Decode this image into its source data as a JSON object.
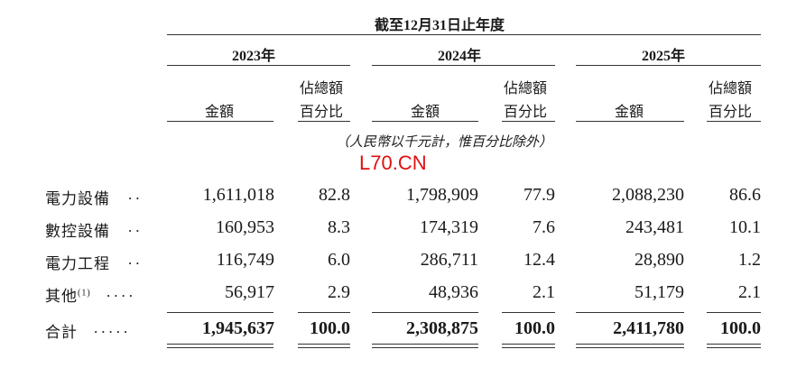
{
  "header": {
    "period": "截至12月31日止年度",
    "years": [
      "2023年",
      "2024年",
      "2025年"
    ],
    "col_amount": "金額",
    "col_pct_line1": "佔總額",
    "col_pct_line2": "百分比",
    "unit_note": "（人民幣以千元計，惟百分比除外）"
  },
  "watermark": "L70.CN",
  "rows": [
    {
      "label": "電力設備",
      "dots": "..",
      "values": [
        "1,611,018",
        "82.8",
        "1,798,909",
        "77.9",
        "2,088,230",
        "86.6"
      ]
    },
    {
      "label": "數控設備",
      "dots": "..",
      "values": [
        "160,953",
        "8.3",
        "174,319",
        "7.6",
        "243,481",
        "10.1"
      ]
    },
    {
      "label": "電力工程",
      "dots": "..",
      "values": [
        "116,749",
        "6.0",
        "286,711",
        "12.4",
        "28,890",
        "1.2"
      ]
    },
    {
      "label": "其他",
      "sup": "(1)",
      "dots": "....",
      "values": [
        "56,917",
        "2.9",
        "48,936",
        "2.1",
        "51,179",
        "2.1"
      ]
    }
  ],
  "total": {
    "label": "合計",
    "dots": ".....",
    "values": [
      "1,945,637",
      "100.0",
      "2,308,875",
      "100.0",
      "2,411,780",
      "100.0"
    ]
  }
}
